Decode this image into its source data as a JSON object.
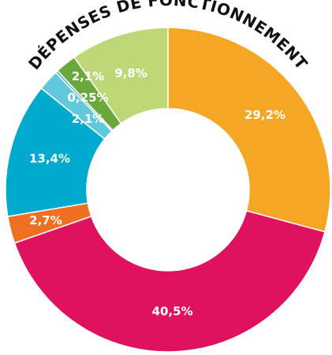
{
  "chart_data": {
    "type": "donut",
    "title": "DÉPENSES DE FONCTIONNEMENT",
    "categories": [
      null,
      null,
      null,
      null,
      null,
      null,
      null,
      null
    ],
    "values": [
      29.2,
      40.5,
      2.7,
      13.4,
      2.1,
      0.25,
      2.1,
      9.8
    ],
    "value_labels": [
      "29,2%",
      "40,5%",
      "2,7%",
      "13,4%",
      "2,1%",
      "0,25%",
      "2,1%",
      "9,8%"
    ],
    "colors": [
      "#f5a623",
      "#e0115f",
      "#f07021",
      "#00a9ce",
      "#62c9dc",
      "#3fb4c8",
      "#6aa83c",
      "#bcd877"
    ]
  }
}
